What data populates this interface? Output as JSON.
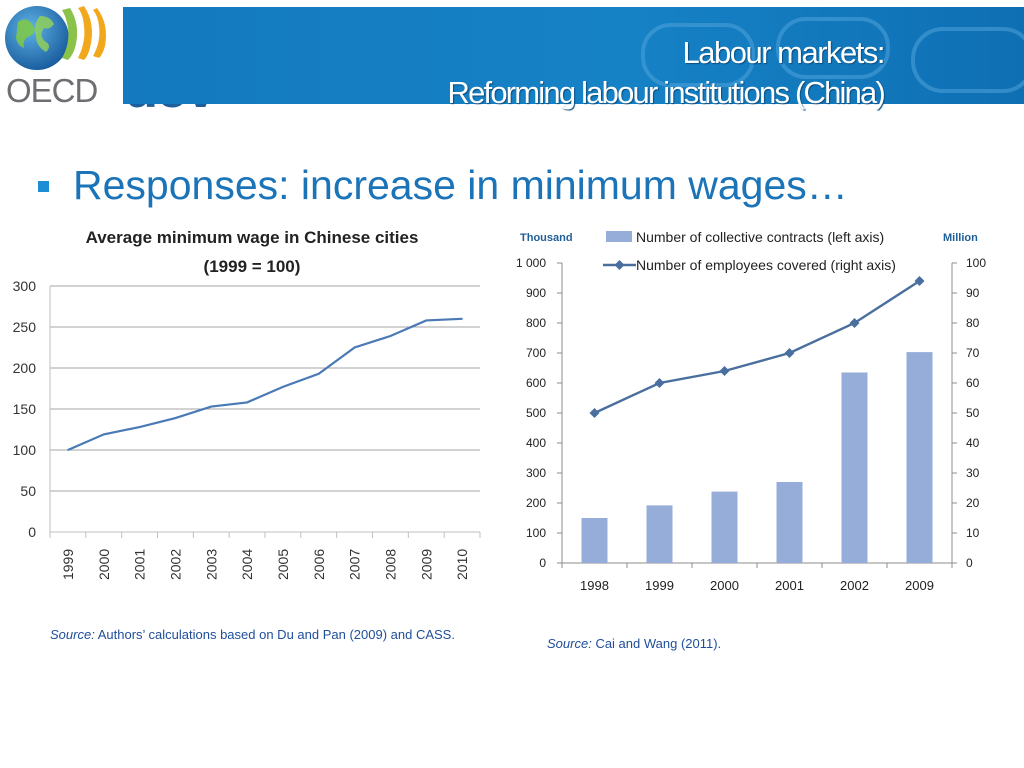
{
  "header": {
    "logo_text": "OECD",
    "brand_text": "dev",
    "title_line1": "Labour markets:",
    "title_line2": "Reforming labour institutions (China)",
    "band_color": "#1479bf"
  },
  "main": {
    "bullet": "Responses: increase in minimum wages…"
  },
  "sources": {
    "left_label": "Source:",
    "left_text": "Authors’ calculations based on Du and Pan (2009) and CASS.",
    "right_label": "Source:",
    "right_text": "Cai and Wang (2011)."
  },
  "chart_data": [
    {
      "type": "line",
      "title": "Average minimum wage in Chinese cities",
      "subtitle": "(1999 = 100)",
      "categories": [
        "1999",
        "2000",
        "2001",
        "2002",
        "2003",
        "2004",
        "2005",
        "2006",
        "2007",
        "2008",
        "2009",
        "2010"
      ],
      "series": [
        {
          "values": [
            100,
            119,
            128,
            139,
            153,
            158,
            177,
            193,
            225,
            239,
            258,
            260
          ],
          "color": "#4a7ab5"
        }
      ],
      "yticks": [
        "0",
        "50",
        "100",
        "150",
        "200",
        "250",
        "300"
      ],
      "ylim": [
        0,
        300
      ],
      "grid": true
    },
    {
      "type": "bar",
      "title": "",
      "left_unit": "Thousand",
      "right_unit": "Million",
      "categories": [
        "1998",
        "1999",
        "2000",
        "2001",
        "2002",
        "2009"
      ],
      "series": [
        {
          "name": "Number of collective contracts (left axis)",
          "type": "bar",
          "axis": "left",
          "values": [
            150,
            192,
            238,
            270,
            635,
            703
          ],
          "color": "#95add8"
        },
        {
          "name": "Number of employees covered (right axis)",
          "type": "line",
          "axis": "right",
          "values": [
            50,
            60,
            64,
            70,
            80,
            94
          ],
          "color": "#4a6f9e"
        }
      ],
      "left_ticks": [
        "0",
        "100",
        "200",
        "300",
        "400",
        "500",
        "600",
        "700",
        "800",
        "900",
        "1 000"
      ],
      "right_ticks": [
        "0",
        "10",
        "20",
        "30",
        "40",
        "50",
        "60",
        "70",
        "80",
        "90",
        "100"
      ],
      "ylim_left": [
        0,
        1000
      ],
      "ylim_right": [
        0,
        100
      ],
      "grid": false
    }
  ]
}
